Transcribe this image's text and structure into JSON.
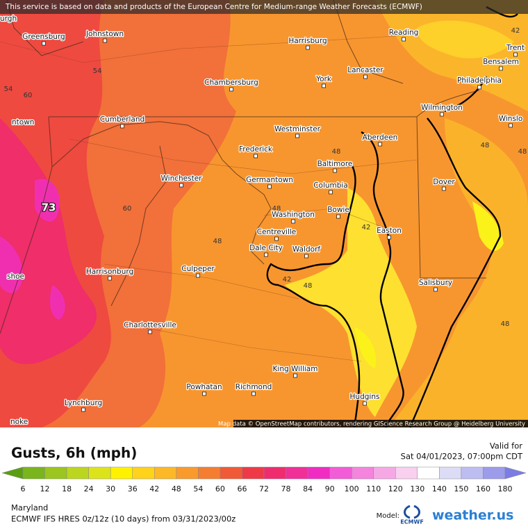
{
  "banner": "This service is based on data and products of the European Centre for Medium-range Weather Forecasts (ECMWF)",
  "attribution": "Map data © OpenStreetMap contributors, rendering GIScience Research Group @ Heidelberg University",
  "cities": [
    "urgh",
    "Greensburg",
    "Johnstown",
    "Harrisburg",
    "Reading",
    "Trent",
    "Bensalem",
    "Lancaster",
    "York",
    "Philadelphia",
    "Chambersburg",
    "Wilmington",
    "Winslo",
    "ntown",
    "Cumberland",
    "Westminster",
    "Aberdeen",
    "Frederick",
    "Baltimore",
    "Germantown",
    "Winchester",
    "Columbia",
    "Dover",
    "Bowie",
    "Washington",
    "Centreville",
    "Easton",
    "Dale City",
    "Waldorf",
    "Culpeper",
    "Harrisonburg",
    "shoe",
    "Salisbury",
    "Charlottesville",
    "King William",
    "Powhatan",
    "Richmond",
    "Hudgins",
    "Lynchburg",
    "noke"
  ],
  "contour_labels": [
    42,
    54,
    54,
    60,
    48,
    48,
    60,
    48,
    48,
    42,
    48,
    42,
    48,
    48
  ],
  "max_label": 73,
  "title": "Gusts, 6h (mph)",
  "valid_label": "Valid for",
  "valid_time": "Sat 04/01/2023, 07:00pm CDT",
  "scale": {
    "ticks": [
      6,
      12,
      18,
      24,
      30,
      36,
      42,
      48,
      54,
      60,
      66,
      72,
      78,
      84,
      90,
      100,
      110,
      120,
      130,
      140,
      150,
      160,
      180
    ],
    "colors": [
      "#5a9e12",
      "#7ab51d",
      "#9bc61f",
      "#bcd61f",
      "#dde31a",
      "#fff200",
      "#ffd21c",
      "#fdb827",
      "#f99a2d",
      "#f57d31",
      "#f05a36",
      "#ee3a47",
      "#ef2d6e",
      "#f02f99",
      "#f02cc2",
      "#f25cd6",
      "#f484dd",
      "#f6a8e5",
      "#f9d0ef",
      "#ffffff",
      "#dcdcf7",
      "#bdbdf2",
      "#9c9ceb",
      "#7c7ce5"
    ]
  },
  "region": "Maryland",
  "model_run": "ECMWF IFS HRES 0z/12z (10 days) from  03/31/2023/00z",
  "model_label": "Model:",
  "model_logo": "ECMWF",
  "brand": "weather.us"
}
